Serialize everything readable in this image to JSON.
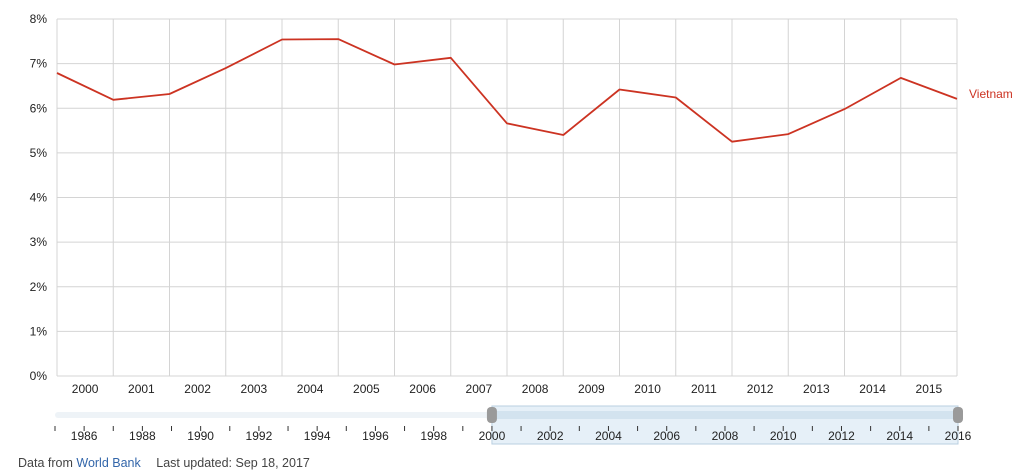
{
  "chart_data": {
    "type": "line",
    "x": [
      "2000",
      "2001",
      "2002",
      "2003",
      "2004",
      "2005",
      "2006",
      "2007",
      "2008",
      "2009",
      "2010",
      "2011",
      "2012",
      "2013",
      "2014",
      "2015",
      "2016"
    ],
    "series": [
      {
        "name": "Vietnam",
        "color": "#cc3322",
        "values": [
          6.79,
          6.19,
          6.32,
          6.9,
          7.54,
          7.55,
          6.98,
          7.13,
          5.66,
          5.4,
          6.42,
          6.24,
          5.25,
          5.42,
          5.98,
          6.68,
          6.21
        ]
      }
    ],
    "x_tick_labels": [
      "2000",
      "2001",
      "2002",
      "2003",
      "2004",
      "2005",
      "2006",
      "2007",
      "2008",
      "2009",
      "2010",
      "2011",
      "2012",
      "2013",
      "2014",
      "2015"
    ],
    "y_ticks": [
      "0%",
      "1%",
      "2%",
      "3%",
      "4%",
      "5%",
      "6%",
      "7%",
      "8%"
    ],
    "ylim": [
      0,
      8
    ],
    "grid": true,
    "legend_placement": "right, at line end",
    "range_selector": {
      "full_range": [
        1985,
        2016
      ],
      "selected_range": [
        2000,
        2016
      ],
      "tick_labels": [
        "1986",
        "1988",
        "1990",
        "1992",
        "1994",
        "1996",
        "1998",
        "2000",
        "2002",
        "2004",
        "2006",
        "2008",
        "2010",
        "2012",
        "2014",
        "2016"
      ]
    }
  },
  "footer": {
    "source_prefix": "Data from",
    "source_link": "World Bank",
    "last_updated": "Last updated: Sep 18, 2017"
  },
  "colors": {
    "line": "#cc3322",
    "grid": "#d4d4d4",
    "axis_text": "#222222",
    "selector_fill": "#e6f0f8",
    "handle": "#9a9a9a"
  }
}
